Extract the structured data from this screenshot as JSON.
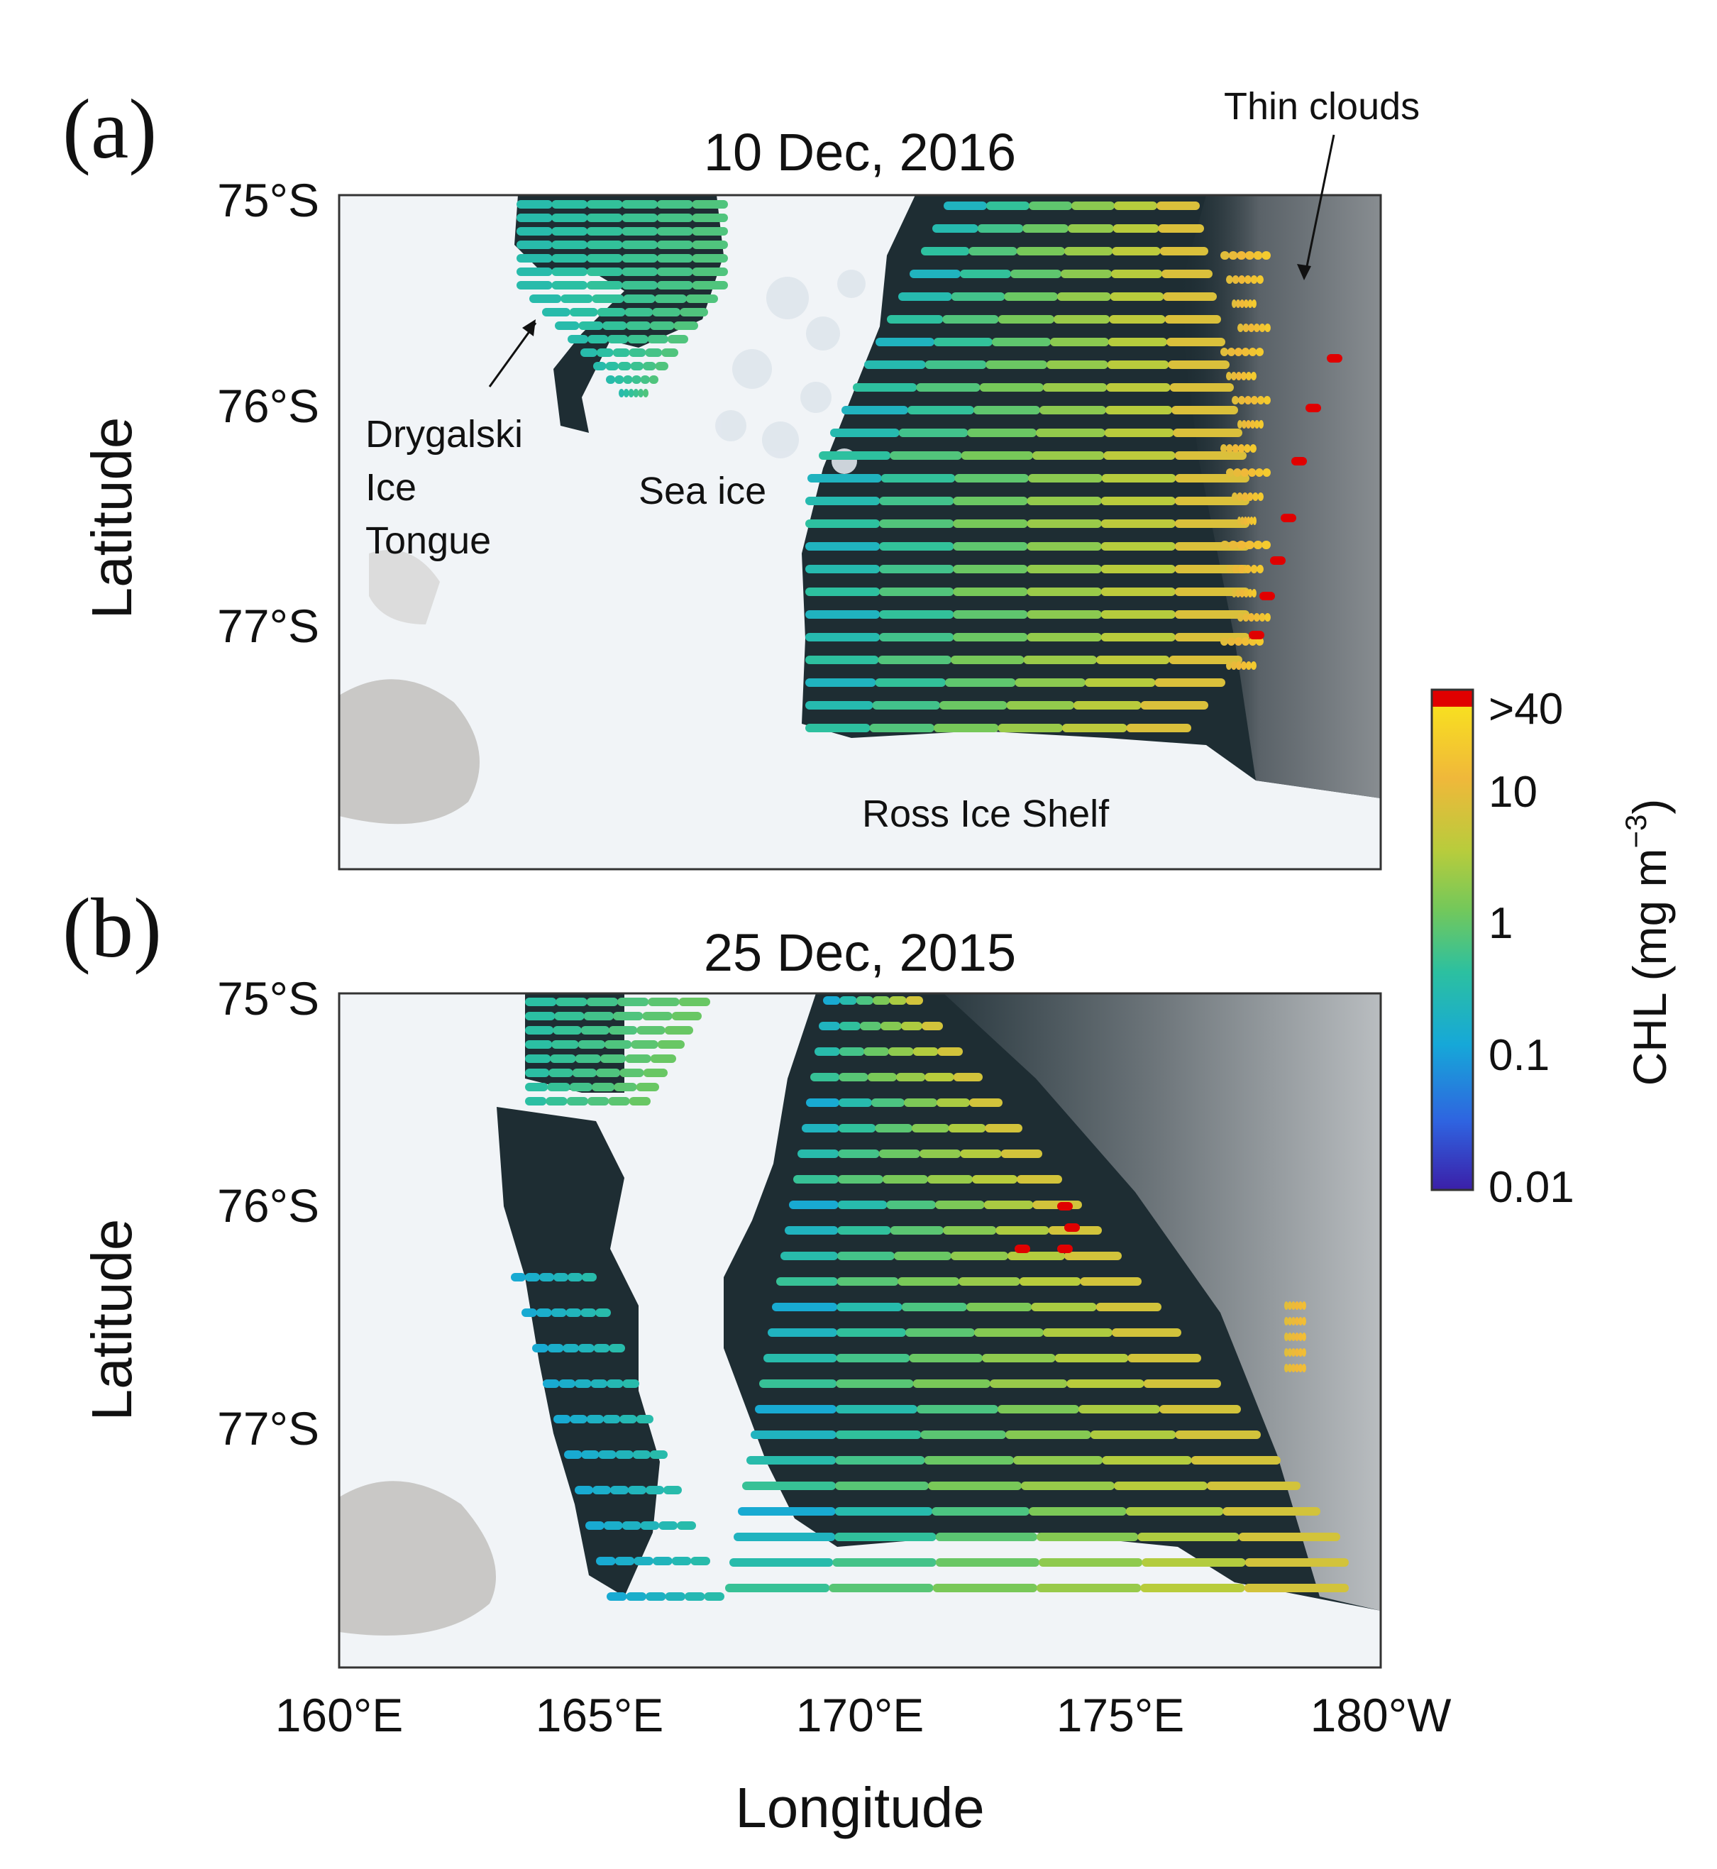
{
  "figure": {
    "x_axis_label": "Longitude",
    "x_ticks": [
      "160°E",
      "165°E",
      "170°E",
      "175°E",
      "180°W"
    ],
    "colorbar": {
      "label": "CHL (mg m",
      "label_superscript": "−3",
      "label_close": ")",
      "ticks": [
        ">40",
        "10",
        "1",
        "0.1",
        "0.01"
      ],
      "scale": "log",
      "over_color": "#e00000",
      "colormap": [
        "#3b1fa8",
        "#2f63e0",
        "#16a8d8",
        "#2cc0a0",
        "#74c85a",
        "#b8cc3c",
        "#f0b83a",
        "#f8e020"
      ]
    },
    "colors": {
      "land_ice": "#f1f4f7",
      "ocean": "#1e2d33",
      "cloud": "#7b8287",
      "mountain": "#8e8b86"
    }
  },
  "panels": [
    {
      "letter": "(a)",
      "title": "10 Dec, 2016",
      "y_axis_label": "Latitude",
      "y_ticks": [
        "75°S",
        "76°S",
        "77°S"
      ],
      "annotations": {
        "glacier_line1": "Drygalski",
        "glacier_line2": "Ice",
        "glacier_line3": "Tongue",
        "sea_ice": "Sea ice",
        "ice_shelf": "Ross Ice Shelf",
        "clouds": "Thin clouds"
      }
    },
    {
      "letter": "(b)",
      "title": "25 Dec, 2015",
      "y_axis_label": "Latitude",
      "y_ticks": [
        "75°S",
        "76°S",
        "77°S"
      ]
    }
  ]
}
